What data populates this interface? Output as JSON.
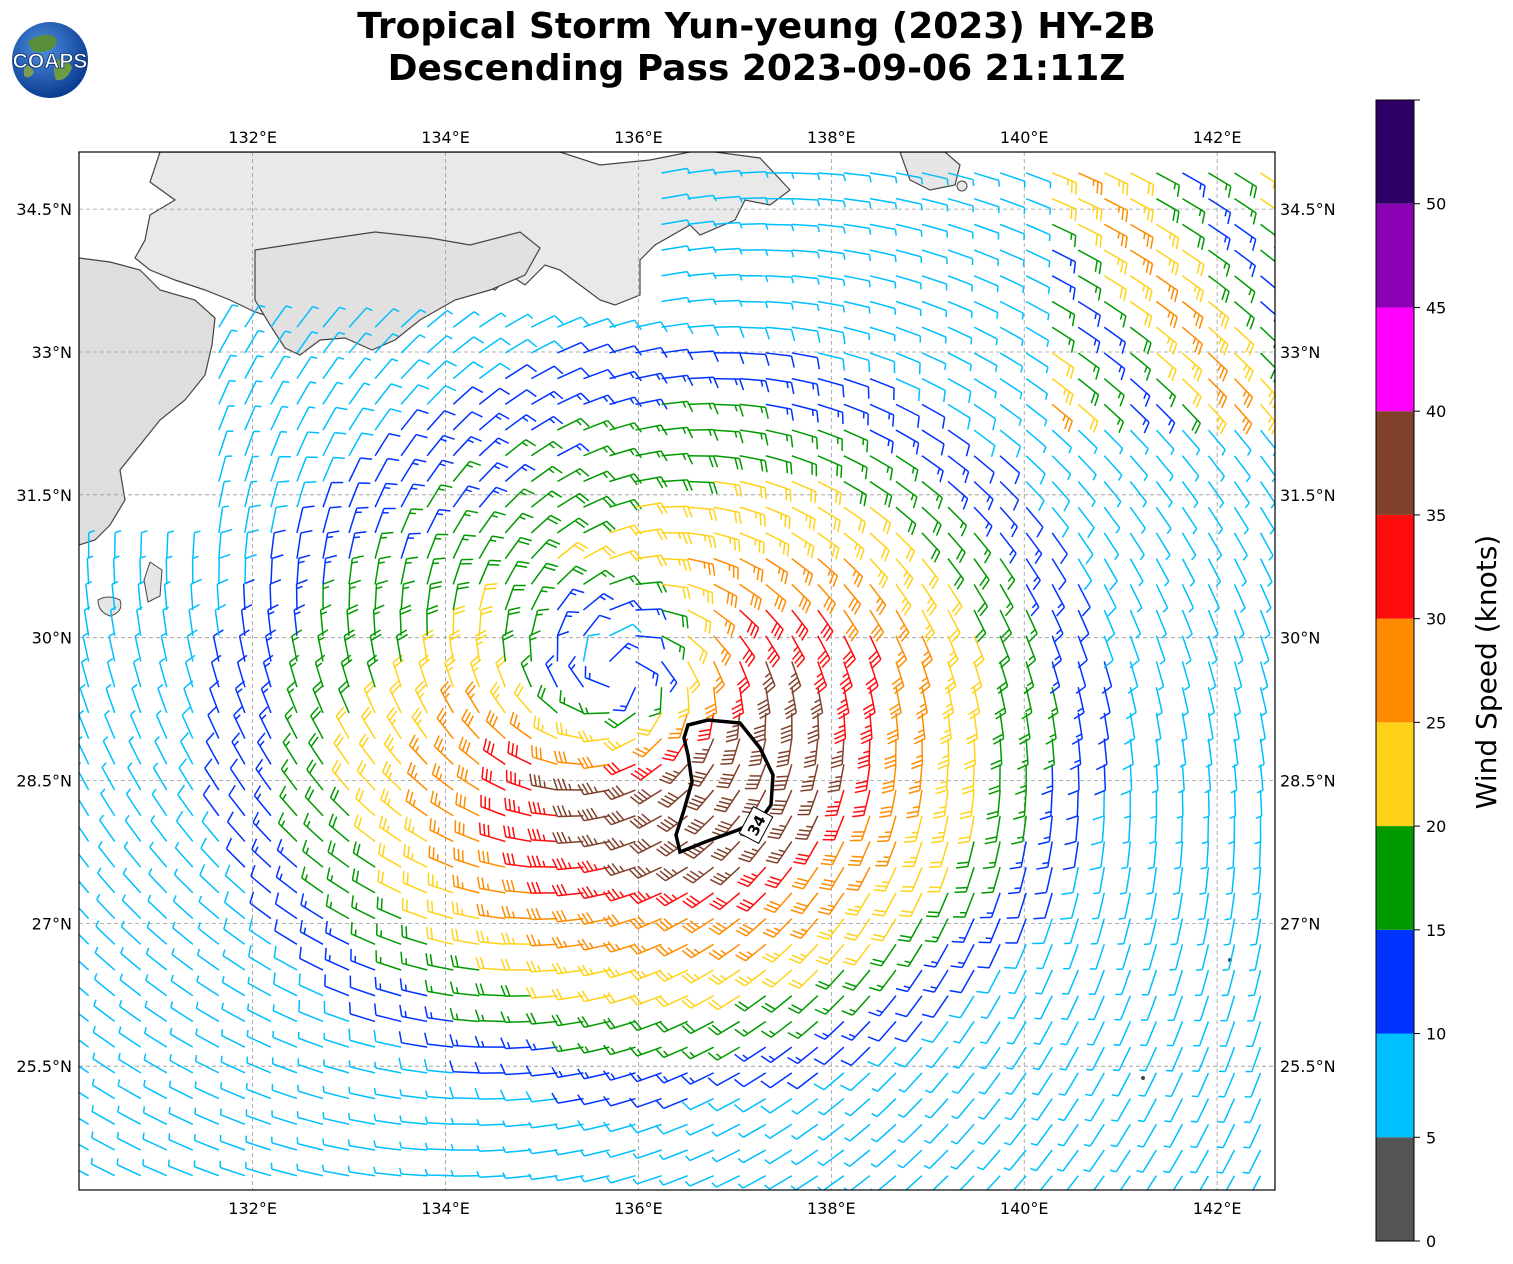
{
  "title": {
    "line1": "Tropical Storm Yun-yeung (2023) HY-2B",
    "line2": "Descending Pass 2023-09-06 21:11Z"
  },
  "logo": {
    "text": "COAPS"
  },
  "map": {
    "lon_range": [
      130.2,
      142.6
    ],
    "lat_range": [
      24.2,
      35.1
    ],
    "lon_ticks": [
      "132°E",
      "134°E",
      "136°E",
      "138°E",
      "140°E",
      "142°E"
    ],
    "lat_ticks": [
      "34.5°N",
      "33°N",
      "31.5°N",
      "30°N",
      "28.5°N",
      "27°N",
      "25.5°N"
    ],
    "storm_center": {
      "lon": 135.8,
      "lat": 29.6
    },
    "wind_contour_label": "34",
    "gridlines": true,
    "land_color": "#e6e6e6",
    "ocean_color": "#ffffff"
  },
  "colorbar": {
    "label": "Wind Speed (knots)",
    "ticks": [
      "0",
      "5",
      "10",
      "15",
      "20",
      "25",
      "30",
      "35",
      "40",
      "45",
      "50"
    ],
    "bins": [
      {
        "from": 0,
        "to": 5,
        "color": "#555555"
      },
      {
        "from": 5,
        "to": 10,
        "color": "#00bfff"
      },
      {
        "from": 10,
        "to": 15,
        "color": "#0033ff"
      },
      {
        "from": 15,
        "to": 20,
        "color": "#009900"
      },
      {
        "from": 20,
        "to": 25,
        "color": "#ffd21a"
      },
      {
        "from": 25,
        "to": 30,
        "color": "#ff8c00"
      },
      {
        "from": 30,
        "to": 35,
        "color": "#ff0d0d"
      },
      {
        "from": 35,
        "to": 40,
        "color": "#80402a"
      },
      {
        "from": 40,
        "to": 45,
        "color": "#ff00ff"
      },
      {
        "from": 45,
        "to": 50,
        "color": "#8b00b3"
      },
      {
        "from": 50,
        "to": 55,
        "color": "#2e0066"
      }
    ]
  }
}
